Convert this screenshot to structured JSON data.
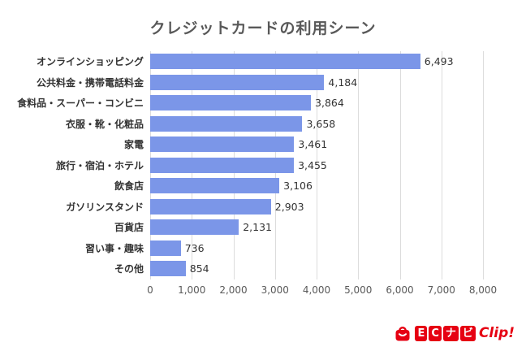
{
  "title": "クレジットカードの利用シーン",
  "chart_data": {
    "type": "bar",
    "orientation": "horizontal",
    "title": "クレジットカードの利用シーン",
    "categories": [
      "オンラインショッピング",
      "公共料金・携帯電話料金",
      "食料品・スーパー・コンビニ",
      "衣服・靴・化粧品",
      "家電",
      "旅行・宿泊・ホテル",
      "飲食店",
      "ガソリンスタンド",
      "百貨店",
      "習い事・趣味",
      "その他"
    ],
    "values": [
      6493,
      4184,
      3864,
      3658,
      3461,
      3455,
      3106,
      2903,
      2131,
      736,
      854
    ],
    "value_labels": [
      "6,493",
      "4,184",
      "3,864",
      "3,658",
      "3,461",
      "3,455",
      "3,106",
      "2,903",
      "2,131",
      "736",
      "854"
    ],
    "xlim": [
      0,
      8000
    ],
    "x_ticks": [
      "0",
      "1,000",
      "2,000",
      "3,000",
      "4,000",
      "5,000",
      "6,000",
      "7,000",
      "8,000"
    ],
    "bar_color": "#7B96E8",
    "grid_color": "#dcdcdc",
    "grid": true,
    "legend": false
  },
  "logo": {
    "icon": "shopping-bag-icon",
    "chars": [
      "E",
      "C",
      "ナ",
      "ビ"
    ],
    "suffix": "Clip!",
    "color": "#e60012"
  }
}
